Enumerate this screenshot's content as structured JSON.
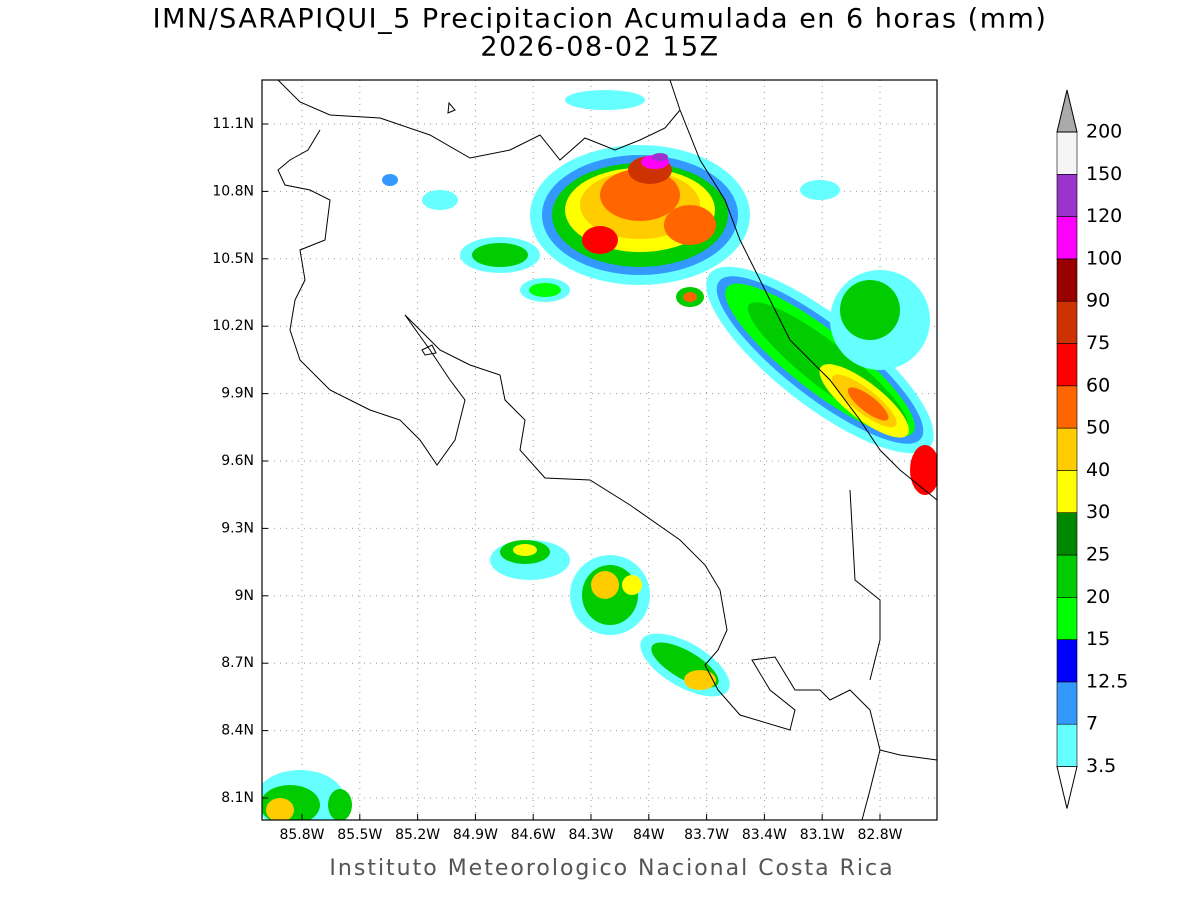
{
  "title": "IMN/SARAPIQUI_5 Precipitacion Acumulada en 6 horas (mm)",
  "subtitle": "2026-08-02 15Z",
  "lat_labels": [
    "11.1N",
    "10.8N",
    "10.5N",
    "10.2N",
    "9.9N",
    "9.6N",
    "9.3N",
    "9N",
    "8.7N",
    "8.4N",
    "8.1N"
  ],
  "lon_labels": [
    "85.8W",
    "85.5W",
    "85.2W",
    "84.9W",
    "84.6W",
    "84.3W",
    "84W",
    "83.7W",
    "83.4W",
    "83.1W",
    "82.8W"
  ],
  "colorbar": {
    "levels": [
      3.5,
      7,
      12.5,
      15,
      20,
      25,
      30,
      40,
      50,
      60,
      75,
      90,
      100,
      120,
      150,
      200
    ],
    "colors": [
      "#ffffff",
      "#66ffff",
      "#3399ff",
      "#0000ff",
      "#00ff00",
      "#00cc00",
      "#008800",
      "#ffff00",
      "#ffcc00",
      "#ff6600",
      "#ff0000",
      "#cc3300",
      "#990000",
      "#ff00ff",
      "#9933cc",
      "#f5f5f5",
      "#aaaaaa"
    ]
  },
  "credit": "Instituto Meteorologico Nacional Costa Rica"
}
